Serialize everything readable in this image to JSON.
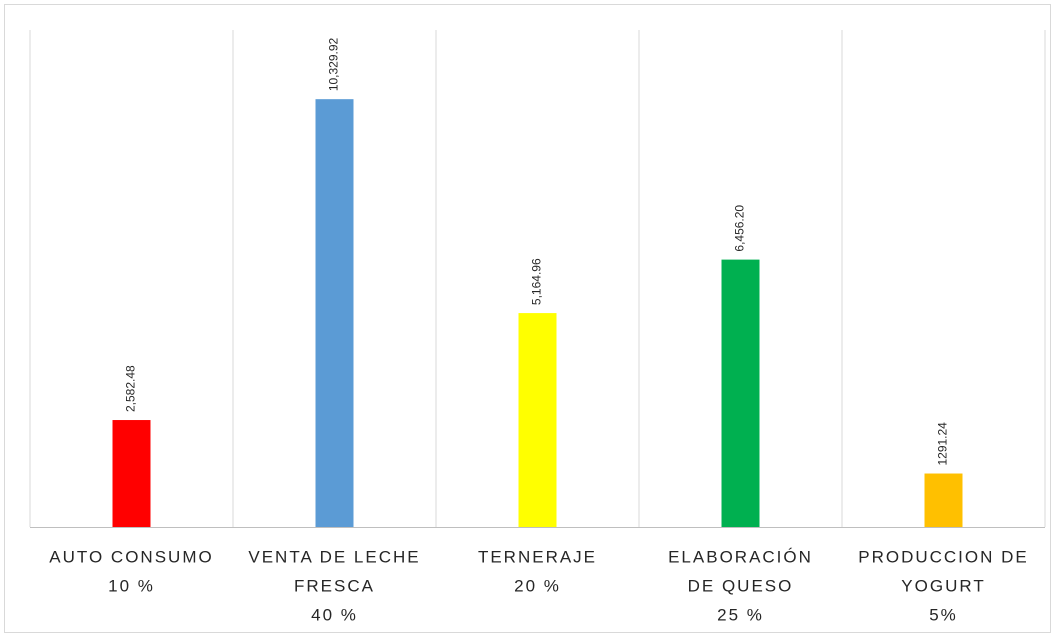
{
  "chart_data": {
    "type": "bar",
    "categories": [
      [
        "AUTO CONSUMO",
        "10 %"
      ],
      [
        "VENTA DE LECHE",
        "FRESCA",
        "40 %"
      ],
      [
        "TERNERAJE",
        "20 %"
      ],
      [
        "ELABORACIÓN",
        "DE QUESO",
        "25 %"
      ],
      [
        "PRODUCCION DE",
        "YOGURT",
        "5%"
      ]
    ],
    "values": [
      2582.48,
      10329.92,
      5164.96,
      6456.2,
      1291.24
    ],
    "value_labels": [
      "2,582.48",
      "10,329.92",
      "5,164.96",
      "6,456.20",
      "1291.24"
    ],
    "colors": [
      "#ff0000",
      "#5b9bd5",
      "#ffff00",
      "#00b050",
      "#ffc000"
    ],
    "ylim": [
      0,
      12000
    ]
  }
}
